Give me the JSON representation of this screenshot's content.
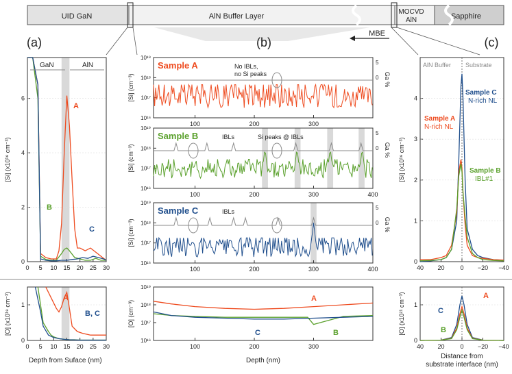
{
  "header_bar": {
    "layers": [
      "UID GaN",
      "AlN Buffer Layer",
      "MOCVD AlN",
      "Sapphire"
    ],
    "mbe_label": "MBE"
  },
  "panel_labels": {
    "a": "(a)",
    "b": "(b)",
    "c": "(c)"
  },
  "colors": {
    "sample_a": "#ee4b1f",
    "sample_b": "#5aa02c",
    "sample_c": "#1f4e8c",
    "marker_gray": "#8a8a8a",
    "shade": "#d9d9d9"
  },
  "chart_data": [
    {
      "id": "a_si",
      "type": "line",
      "ylabel": "[Si] (x10¹⁸ cm⁻³)",
      "ylim": [
        0,
        7.5
      ],
      "yticks": [
        "0",
        "2",
        "4",
        "6"
      ],
      "xlim": [
        0,
        30
      ],
      "xticks": [
        "0",
        "5",
        "10",
        "15",
        "20",
        "25",
        "30"
      ],
      "region_labels": [
        "GaN",
        "AlN"
      ],
      "shaded_x": [
        13,
        16
      ],
      "series": [
        {
          "name": "A",
          "x": [
            0,
            2,
            4,
            5,
            7,
            9,
            11,
            12,
            13,
            14,
            15,
            16,
            17,
            18,
            19,
            20,
            22,
            24,
            26,
            28,
            30
          ],
          "values": [
            7.5,
            7.5,
            6.5,
            0.3,
            0.15,
            0.1,
            0.1,
            0.4,
            1.4,
            4.0,
            6.1,
            5.0,
            3.0,
            1.2,
            0.5,
            0.5,
            0.4,
            0.5,
            0.35,
            0.2,
            0.05
          ]
        },
        {
          "name": "B",
          "x": [
            0,
            2,
            4,
            5,
            7,
            9,
            11,
            13,
            14,
            15,
            16,
            18,
            20,
            22,
            24,
            26,
            28,
            30
          ],
          "values": [
            7.5,
            7.5,
            6.0,
            0.2,
            0.08,
            0.05,
            0.05,
            0.3,
            0.45,
            0.5,
            0.4,
            0.15,
            0.1,
            0.05,
            0.05,
            0.12,
            0.05,
            0.05
          ]
        },
        {
          "name": "C",
          "x": [
            0,
            2,
            4,
            5,
            7,
            9,
            11,
            13,
            15,
            17,
            19,
            21,
            23,
            25,
            27,
            29,
            30
          ],
          "values": [
            7.5,
            7.5,
            6.5,
            0.1,
            0.05,
            0.03,
            0.03,
            0.05,
            0.05,
            0.08,
            0.1,
            0.15,
            0.12,
            0.2,
            0.15,
            0.1,
            0.05
          ]
        }
      ],
      "annotations": [
        "A",
        "B",
        "C"
      ]
    },
    {
      "id": "a_o",
      "type": "line",
      "ylabel": "[O] (x10¹⁹ cm⁻³)",
      "xlabel": "Depth from Suface (nm)",
      "ylim": [
        0,
        1.5
      ],
      "yticks": [
        "0",
        "1"
      ],
      "xlim": [
        0,
        30
      ],
      "xticks": [
        "0",
        "5",
        "10",
        "15",
        "20",
        "25",
        "30"
      ],
      "shaded_x": [
        13,
        16
      ],
      "series": [
        {
          "name": "A",
          "x": [
            7,
            9,
            11,
            12,
            13,
            14,
            15,
            16,
            17,
            19,
            21,
            24,
            27,
            30
          ],
          "values": [
            1.5,
            1.2,
            0.9,
            0.8,
            0.95,
            1.2,
            1.35,
            0.9,
            0.4,
            0.25,
            0.2,
            0.15,
            0.15,
            0.15
          ]
        },
        {
          "name": "B",
          "x": [
            4,
            6,
            8,
            9,
            10,
            12,
            14,
            16,
            18,
            20,
            25,
            30
          ],
          "values": [
            1.5,
            0.5,
            0.25,
            0.15,
            0.1,
            0.05,
            0.03,
            0.02,
            0.02,
            0.01,
            0.01,
            0.01
          ]
        },
        {
          "name": "C",
          "x": [
            3,
            5,
            6,
            8,
            10,
            12,
            14,
            16,
            20,
            25,
            30
          ],
          "values": [
            1.5,
            0.8,
            0.4,
            0.15,
            0.08,
            0.05,
            0.03,
            0.02,
            0.01,
            0.01,
            0.01
          ]
        }
      ],
      "annotations": [
        "A",
        "B, C"
      ]
    },
    {
      "id": "b_si_a",
      "type": "line",
      "scale": "log",
      "title": "Sample A",
      "ylabel": "[Si] (cm⁻³)",
      "y2label": "Ga %",
      "yticks": [
        "10¹⁶",
        "10¹⁷",
        "10¹⁸",
        "10¹⁹"
      ],
      "y2ticks": [
        "0",
        "5"
      ],
      "xlim": [
        30,
        400
      ],
      "xticks": [
        "100",
        "200",
        "300"
      ],
      "note": [
        "No IBLs,",
        "no Si peaks"
      ],
      "series": [
        {
          "name": "Sample A",
          "ylim": [
            16.5,
            17.6
          ]
        }
      ]
    },
    {
      "id": "b_si_b",
      "type": "line",
      "scale": "log",
      "title": "Sample B",
      "ylabel": "[Si] (cm⁻³)",
      "y2label": "Ga %",
      "yticks": [
        "10¹⁶",
        "10¹⁷",
        "10¹⁸",
        "10¹⁹"
      ],
      "y2ticks": [
        "0",
        "5"
      ],
      "xlim": [
        30,
        400
      ],
      "xticks": [
        "100",
        "200",
        "300",
        "400"
      ],
      "notes": [
        "IBLs",
        "Si peaks @ IBLs"
      ],
      "ga_peaks_x": [
        68,
        120,
        165,
        270,
        330,
        380
      ],
      "si_peaks_x": [
        218,
        272,
        328,
        382
      ],
      "shaded_x": [
        [
          213,
          223
        ],
        [
          268,
          278
        ],
        [
          323,
          333
        ],
        [
          376,
          386
        ]
      ],
      "series": [
        {
          "name": "Sample B",
          "ylim": [
            16.5,
            17.4
          ]
        }
      ]
    },
    {
      "id": "b_si_c",
      "type": "line",
      "scale": "log",
      "title": "Sample C",
      "ylabel": "[Si] (cm⁻³)",
      "y2label": "Ga %",
      "xlabel": "",
      "yticks": [
        "10¹⁶",
        "10¹⁷",
        "10¹⁸",
        "10¹⁹"
      ],
      "y2ticks": [
        "0",
        "5"
      ],
      "xlim": [
        30,
        400
      ],
      "xticks": [
        "100",
        "200",
        "300",
        "400"
      ],
      "notes": [
        "IBLs"
      ],
      "ga_peaks_x": [
        68,
        125,
        165,
        185,
        240,
        300
      ],
      "si_peaks_x": [
        300
      ],
      "shaded_x": [
        [
          295,
          305
        ]
      ],
      "series": [
        {
          "name": "Sample C",
          "ylim": [
            16.3,
            17.2
          ]
        }
      ]
    },
    {
      "id": "b_o",
      "type": "line",
      "scale": "log",
      "ylabel": "[O] (cm⁻³)",
      "xlabel": "Depth (nm)",
      "yticks": [
        "10¹⁶",
        "10¹⁷",
        "10¹⁸",
        "10¹⁹"
      ],
      "xlim": [
        30,
        400
      ],
      "xticks": [
        "100",
        "200",
        "300"
      ],
      "series": [
        {
          "name": "A",
          "x": [
            30,
            60,
            100,
            150,
            200,
            250,
            300,
            350,
            400
          ],
          "values": [
            18.2,
            18.05,
            17.9,
            17.8,
            17.75,
            17.8,
            17.9,
            18.0,
            18.1
          ]
        },
        {
          "name": "B",
          "x": [
            30,
            60,
            100,
            150,
            200,
            250,
            290,
            300,
            350,
            400
          ],
          "values": [
            17.5,
            17.4,
            17.35,
            17.3,
            17.3,
            17.3,
            17.3,
            16.9,
            17.35,
            17.4
          ]
        },
        {
          "name": "C",
          "x": [
            30,
            60,
            100,
            150,
            200,
            250,
            300,
            350,
            400
          ],
          "values": [
            17.6,
            17.4,
            17.3,
            17.25,
            17.2,
            17.2,
            17.25,
            17.3,
            17.35
          ]
        }
      ],
      "annotations": [
        "A",
        "C",
        "B"
      ]
    },
    {
      "id": "c_si",
      "type": "line",
      "ylabel": "[Si] (x10¹⁹ cm⁻³)",
      "ylim": [
        0,
        5
      ],
      "yticks": [
        "0",
        "1",
        "2",
        "3",
        "4"
      ],
      "xlim": [
        40,
        -40
      ],
      "xticks": [
        "40",
        "20",
        "0",
        "−20",
        "−40"
      ],
      "region_labels": [
        "AlN Buffer",
        "Substrate"
      ],
      "series": [
        {
          "name": "Sample C",
          "label": "N-rich NL",
          "x": [
            40,
            30,
            20,
            15,
            10,
            5,
            3,
            1,
            0,
            -1,
            -3,
            -5,
            -10,
            -15,
            -20,
            -30,
            -40
          ],
          "values": [
            0,
            0.02,
            0.05,
            0.1,
            0.3,
            1.0,
            2.5,
            4.3,
            4.6,
            4.0,
            2.0,
            0.8,
            0.3,
            0.15,
            0.1,
            0.05,
            0.03
          ]
        },
        {
          "name": "Sample A",
          "label": "N-rich NL",
          "x": [
            40,
            30,
            20,
            15,
            10,
            5,
            3,
            1,
            0,
            -1,
            -3,
            -5,
            -10,
            -15,
            -20,
            -30,
            -40
          ],
          "values": [
            0.05,
            0.05,
            0.1,
            0.15,
            0.4,
            1.2,
            2.2,
            2.5,
            2.3,
            1.7,
            0.9,
            0.4,
            0.15,
            0.1,
            0.08,
            0.05,
            0.04
          ]
        },
        {
          "name": "Sample B",
          "label": "IBL#1",
          "x": [
            40,
            30,
            20,
            15,
            10,
            5,
            3,
            1,
            0,
            -1,
            -3,
            -5,
            -10,
            -15,
            -20,
            -30,
            -40
          ],
          "values": [
            0.02,
            0.03,
            0.05,
            0.1,
            0.3,
            1.3,
            2.1,
            2.4,
            2.2,
            1.7,
            1.1,
            0.6,
            0.2,
            0.1,
            0.05,
            0.03,
            0.02
          ]
        }
      ]
    },
    {
      "id": "c_o",
      "type": "line",
      "ylabel": "[O] (x10²¹ cm⁻³)",
      "xlabel": [
        "Distance from",
        "substrate interface (nm)"
      ],
      "ylim": [
        0,
        1.5
      ],
      "yticks": [
        "0",
        "1"
      ],
      "xlim": [
        40,
        -40
      ],
      "xticks": [
        "40",
        "20",
        "0",
        "−20",
        "−40"
      ],
      "series": [
        {
          "name": "C",
          "x": [
            40,
            20,
            10,
            5,
            2,
            0,
            -2,
            -5,
            -10,
            -20,
            -40
          ],
          "values": [
            0,
            0.01,
            0.08,
            0.45,
            1.0,
            1.25,
            1.0,
            0.45,
            0.08,
            0.01,
            0
          ]
        },
        {
          "name": "A",
          "x": [
            40,
            20,
            10,
            5,
            2,
            0,
            -2,
            -5,
            -10,
            -20,
            -40
          ],
          "values": [
            0,
            0.01,
            0.06,
            0.35,
            0.75,
            0.95,
            0.75,
            0.35,
            0.06,
            0.01,
            0
          ]
        },
        {
          "name": "B",
          "x": [
            40,
            20,
            10,
            5,
            2,
            0,
            -2,
            -5,
            -10,
            -20,
            -40
          ],
          "values": [
            0,
            0.01,
            0.05,
            0.3,
            0.65,
            0.85,
            0.65,
            0.3,
            0.05,
            0.01,
            0
          ]
        }
      ]
    }
  ]
}
